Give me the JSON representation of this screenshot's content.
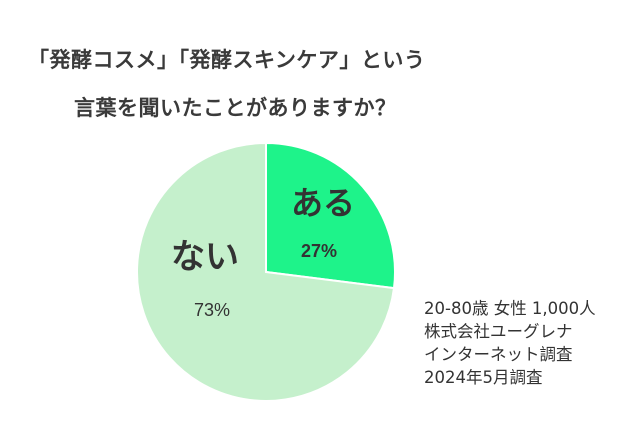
{
  "title": {
    "line1": "「発酵コスメ」「発酵スキンケア」という",
    "line2": "言葉を聞いたことがありますか？"
  },
  "chart_data": {
    "type": "pie",
    "slices": [
      {
        "label": "ある",
        "value": 27,
        "value_label": "27%",
        "color": "#1ef38a"
      },
      {
        "label": "ない",
        "value": 73,
        "value_label": "73%",
        "color": "#c5f0cc"
      }
    ]
  },
  "notes": [
    "20-80歳 女性 1,000人",
    "株式会社ユーグレナ",
    "インターネット調査",
    "2024年5月調査"
  ]
}
